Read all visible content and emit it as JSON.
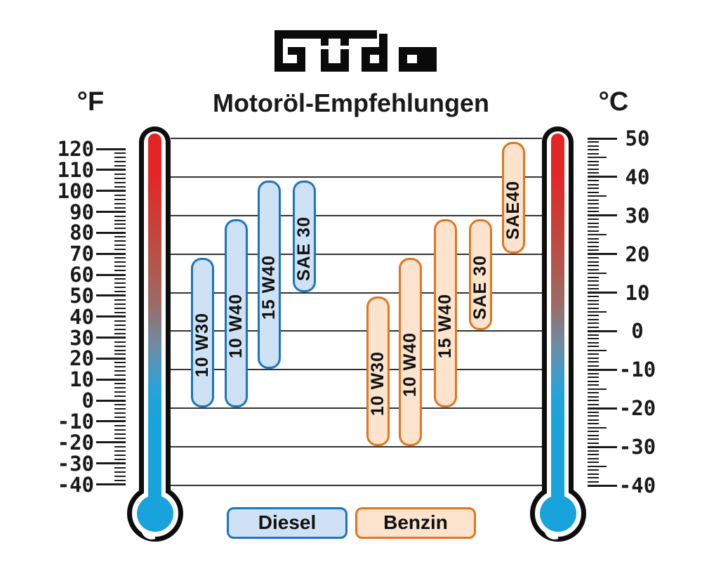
{
  "header": {
    "brand": "Güde",
    "title": "Motoröl-Empfehlungen",
    "left_unit": "°F",
    "right_unit": "°C"
  },
  "chart_data": {
    "type": "range-bar",
    "title": "Motoröl-Empfehlungen",
    "description_units": "temperature ranges shown in °F (left) and °C (right)",
    "axes": {
      "fahrenheit": {
        "unit": "°F",
        "side": "left",
        "ticks": [
          120,
          110,
          100,
          90,
          80,
          70,
          60,
          50,
          40,
          30,
          20,
          10,
          0,
          -10,
          -20,
          -30,
          -40
        ],
        "minor_step": 2,
        "range": [
          -40,
          120
        ]
      },
      "celsius": {
        "unit": "°C",
        "side": "right",
        "ticks": [
          50,
          40,
          30,
          20,
          10,
          0,
          -10,
          -20,
          -30,
          -40
        ],
        "minor_step": 1,
        "medium_step": 5,
        "range": [
          -40,
          50
        ]
      }
    },
    "gridlines_celsius": [
      50,
      40,
      30,
      20,
      10,
      0,
      -10,
      -20,
      -30,
      -40
    ],
    "series": [
      {
        "name": "Diesel",
        "border_color": "#1b75bc",
        "fill_color": "#cfe2f5",
        "bars": [
          {
            "label": "10 W30",
            "min_c": -20,
            "max_c": 20
          },
          {
            "label": "10 W40",
            "min_c": -20,
            "max_c": 30
          },
          {
            "label": "15 W40",
            "min_c": -10,
            "max_c": 40
          },
          {
            "label": "SAE 30",
            "min_c": 10,
            "max_c": 40
          }
        ]
      },
      {
        "name": "Benzin",
        "border_color": "#e0761f",
        "fill_color": "#fbe3cd",
        "bars": [
          {
            "label": "10 W30",
            "min_c": -30,
            "max_c": 10
          },
          {
            "label": "10 W40",
            "min_c": -30,
            "max_c": 20
          },
          {
            "label": "15 W40",
            "min_c": -20,
            "max_c": 30
          },
          {
            "label": "SAE 30",
            "min_c": 0,
            "max_c": 30
          },
          {
            "label": "SAE40",
            "min_c": 20,
            "max_c": 50
          }
        ]
      }
    ],
    "legend": [
      {
        "label": "Diesel"
      },
      {
        "label": "Benzin"
      }
    ]
  },
  "colors": {
    "outline": "#0d0d0d",
    "gridline": "#333333",
    "bulb": "#18a3dc",
    "fluid_top": "#e42528",
    "fluid_bottom": "#18a3dc",
    "text": "#1a1a1a"
  }
}
